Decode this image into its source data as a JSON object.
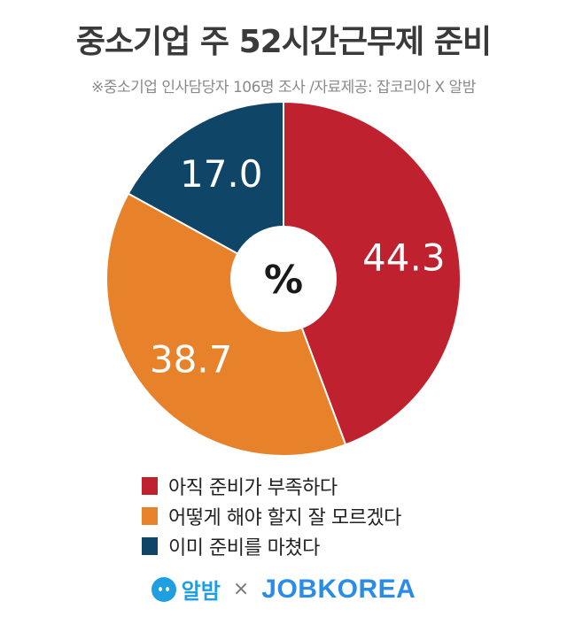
{
  "header": {
    "title": "중소기업 주 52시간근무제 준비",
    "subtitle": "※중소기업 인사담당자 106명 조사 /자료제공: 잡코리아 X 알밤"
  },
  "chart_data": {
    "type": "pie",
    "style": "donut",
    "center_label": "%",
    "slices": [
      {
        "label": "아직 준비가 부족하다",
        "value": 44.3,
        "value_label": "44.3",
        "color": "#c0212f"
      },
      {
        "label": "어떻게 해야 할지 잘 모르겠다",
        "value": 38.7,
        "value_label": "38.7",
        "color": "#e8822a"
      },
      {
        "label": "이미 준비를 마쳤다",
        "value": 17.0,
        "value_label": "17.0",
        "color": "#0f4566"
      }
    ],
    "legend_position": "bottom"
  },
  "footer": {
    "albamon_logo_text": "알밤",
    "separator": "×",
    "jobkorea_logo_text": "JOBKOREA"
  }
}
